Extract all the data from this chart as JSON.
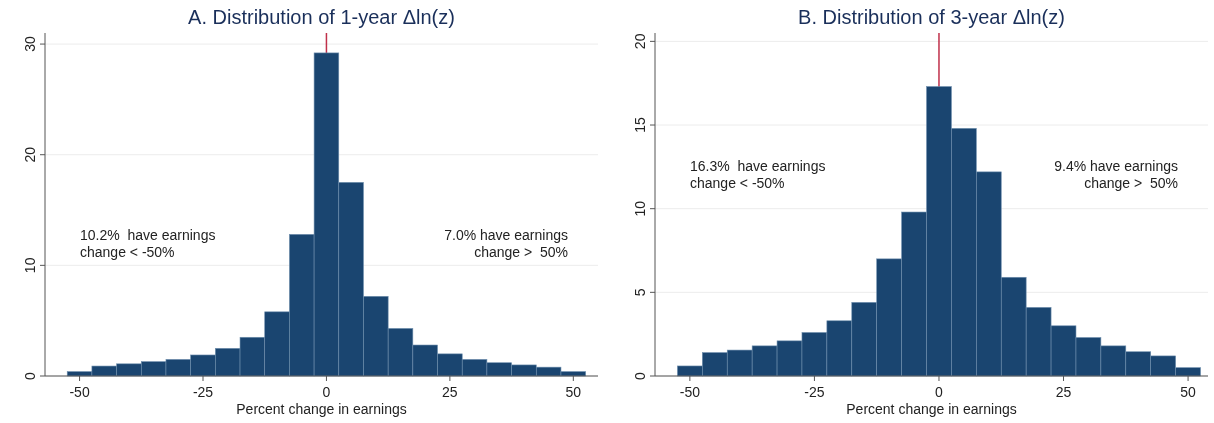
{
  "chart_data": [
    {
      "type": "histogram",
      "title": "A. Distribution of 1-year Δln(z)",
      "xlabel": "Percent change in earnings",
      "bins": [
        -52.5,
        -47.5,
        -42.5,
        -37.5,
        -32.5,
        -27.5,
        -22.5,
        -17.5,
        -12.5,
        -7.5,
        -2.5,
        2.5,
        7.5,
        12.5,
        17.5,
        22.5,
        27.5,
        32.5,
        37.5,
        42.5,
        47.5,
        52.5
      ],
      "values": [
        0.4,
        0.9,
        1.1,
        1.3,
        1.5,
        1.9,
        2.5,
        3.5,
        5.8,
        12.8,
        29.2,
        17.5,
        7.2,
        4.3,
        2.8,
        2.0,
        1.5,
        1.2,
        1.0,
        0.8,
        0.4
      ],
      "color": "#1a4570",
      "xlim": [
        -57,
        55
      ],
      "ylim": [
        0,
        31
      ],
      "xticks": [
        -50,
        -25,
        0,
        25,
        50
      ],
      "yticks": [
        0,
        10,
        20,
        30
      ],
      "grid": "y",
      "ref_lines": [
        {
          "axis": "x",
          "value": 0,
          "color": "#c0304a"
        }
      ],
      "annotations": [
        "10.2%  have earnings\nchange < -50%",
        "7.0% have earnings\nchange >  50%"
      ]
    },
    {
      "type": "histogram",
      "title": "B. Distribution of 3-year Δln(z)",
      "xlabel": "Percent change in earnings",
      "bins": [
        -52.5,
        -47.5,
        -42.5,
        -37.5,
        -32.5,
        -27.5,
        -22.5,
        -17.5,
        -12.5,
        -7.5,
        -2.5,
        2.5,
        7.5,
        12.5,
        17.5,
        22.5,
        27.5,
        32.5,
        37.5,
        42.5,
        47.5,
        52.5
      ],
      "values": [
        0.6,
        1.4,
        1.55,
        1.8,
        2.1,
        2.6,
        3.3,
        4.4,
        7.0,
        9.8,
        17.3,
        14.8,
        12.2,
        5.9,
        4.1,
        3.0,
        2.3,
        1.8,
        1.45,
        1.2,
        0.5
      ],
      "color": "#1a4570",
      "xlim": [
        -57,
        54
      ],
      "ylim": [
        0,
        20.5
      ],
      "xticks": [
        -50,
        -25,
        0,
        25,
        50
      ],
      "yticks": [
        0,
        5,
        10,
        15,
        20
      ],
      "grid": "y",
      "ref_lines": [
        {
          "axis": "x",
          "value": 0,
          "color": "#c0304a"
        }
      ],
      "annotations": [
        "16.3%  have earnings\nchange < -50%",
        "9.4% have earnings\nchange >  50%"
      ]
    }
  ]
}
